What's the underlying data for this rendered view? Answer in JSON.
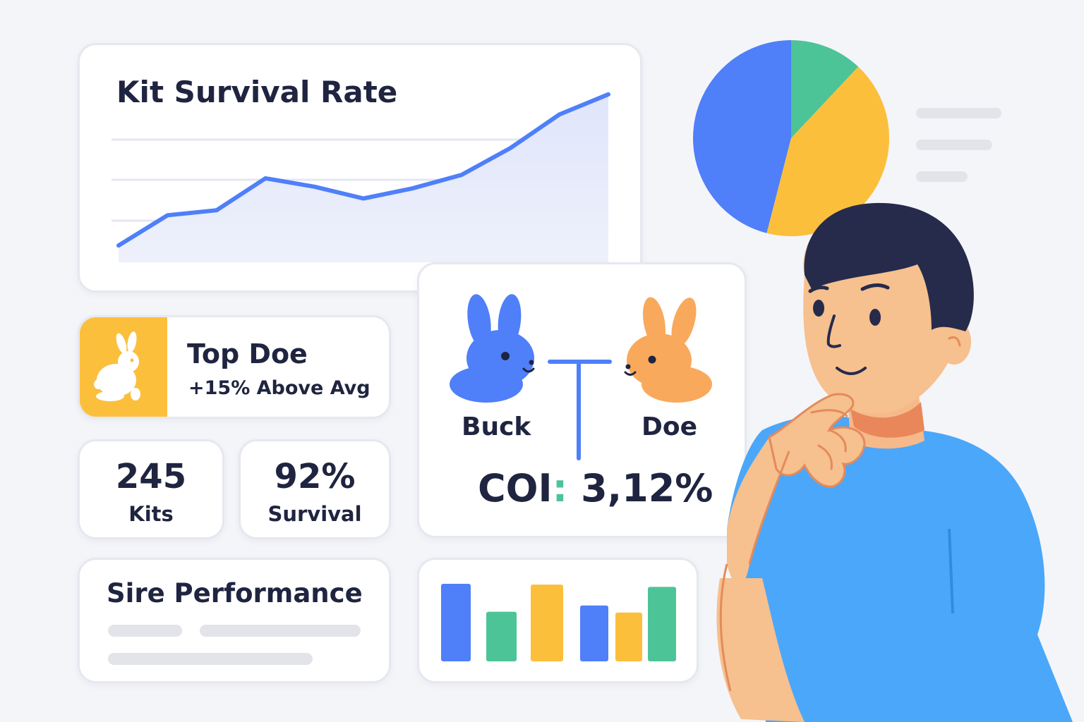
{
  "survival_card": {
    "title": "Kit Survival Rate"
  },
  "top_doe": {
    "title": "Top Doe",
    "subtitle": "+15% Above Avg"
  },
  "stats": [
    {
      "value": "245",
      "label": "Kits"
    },
    {
      "value": "92%",
      "label": "Survival"
    }
  ],
  "pairing": {
    "buck_label": "Buck",
    "doe_label": "Doe",
    "coi_label": "COI",
    "coi_value": "3,12%"
  },
  "sire_card": {
    "title": "Sire Performance"
  },
  "colors": {
    "blue": "#4f7ff9",
    "green": "#4cc497",
    "yellow": "#fcbf3c",
    "orange": "#f9a95b",
    "navy": "#262b4c"
  },
  "chart_data": [
    {
      "type": "area",
      "title": "Kit Survival Rate",
      "x": [
        0,
        1,
        2,
        3,
        4,
        5,
        6,
        7,
        8,
        9,
        10
      ],
      "values": [
        10,
        28,
        31,
        50,
        45,
        38,
        44,
        52,
        68,
        88,
        100
      ],
      "ylim": [
        0,
        110
      ],
      "grid": true,
      "note_axes": "no tick labels shown"
    },
    {
      "type": "bar",
      "values": [
        100,
        64,
        99,
        72,
        63,
        96
      ],
      "bar_colors": [
        "blue",
        "green",
        "yellow",
        "blue",
        "yellow",
        "green"
      ],
      "ylim": [
        0,
        100
      ]
    },
    {
      "type": "pie",
      "values": [
        46,
        12,
        42
      ],
      "slice_colors": [
        "blue",
        "green",
        "yellow"
      ]
    }
  ]
}
